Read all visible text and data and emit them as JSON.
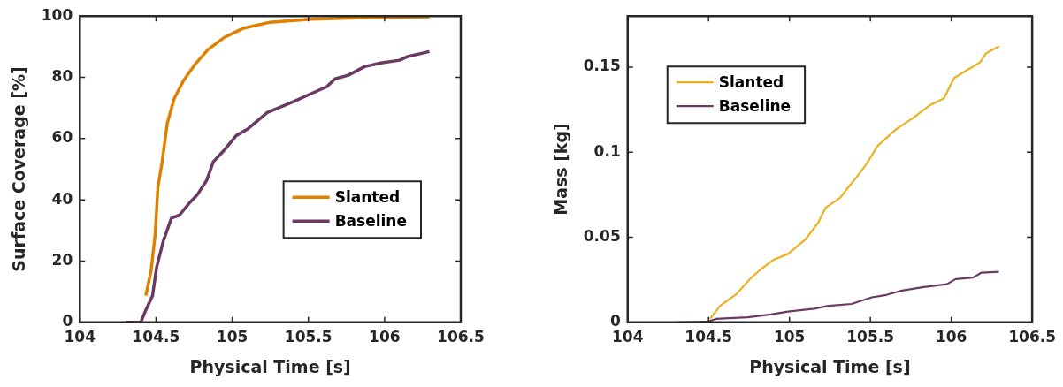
{
  "chart_data": [
    {
      "type": "line",
      "xlabel": "Physical Time [s]",
      "ylabel": "Surface Coverage [%]",
      "xlim": [
        104,
        106.5
      ],
      "xticks": [
        104,
        104.5,
        105,
        105.5,
        106,
        106.5
      ],
      "ylim": [
        0,
        100
      ],
      "yticks": [
        0,
        20,
        40,
        60,
        80,
        100
      ],
      "grid": false,
      "legend": "right",
      "marker": "none",
      "line_style": "solid",
      "series": [
        {
          "name": "Slanted",
          "color": "#e08000",
          "x": [
            104.433,
            104.468,
            104.495,
            104.512,
            104.539,
            104.574,
            104.619,
            104.681,
            104.752,
            104.84,
            104.947,
            105.071,
            105.248,
            105.514,
            105.869,
            106.294
          ],
          "values": [
            8.7,
            17,
            29,
            44,
            52,
            65,
            73,
            79,
            84,
            89,
            93,
            96,
            98,
            99,
            99.5,
            99.8
          ]
        },
        {
          "name": "Baseline",
          "color": "#6b3a64",
          "x": [
            104.3,
            104.4,
            104.433,
            104.477,
            104.504,
            104.548,
            104.601,
            104.654,
            104.716,
            104.77,
            104.832,
            104.876,
            104.947,
            105.027,
            105.106,
            105.23,
            105.408,
            105.514,
            105.62,
            105.674,
            105.762,
            105.869,
            105.975,
            106.099,
            106.152,
            106.294
          ],
          "values": [
            0,
            0,
            4,
            8.7,
            18,
            26.6,
            34,
            35,
            38.8,
            41.6,
            46.3,
            52.4,
            56.2,
            61,
            63.3,
            68.5,
            72.2,
            74.6,
            76.9,
            79.5,
            80.7,
            83.5,
            84.7,
            85.6,
            86.8,
            88.4
          ]
        }
      ]
    },
    {
      "type": "line",
      "xlabel": "Physical Time [s]",
      "ylabel": "Mass [kg]",
      "xlim": [
        104,
        106.5
      ],
      "xticks": [
        104,
        104.5,
        105,
        105.5,
        106,
        106.5
      ],
      "ylim": [
        0,
        0.18
      ],
      "yticks": [
        0,
        0.05,
        0.1,
        0.15
      ],
      "grid": false,
      "legend": "top left",
      "marker": "none",
      "line_style": "solid",
      "series": [
        {
          "name": "Slanted",
          "color": "#edb120",
          "x": [
            104.509,
            104.571,
            104.67,
            104.759,
            104.83,
            104.902,
            104.991,
            105.098,
            105.179,
            105.223,
            105.313,
            105.348,
            105.42,
            105.473,
            105.545,
            105.652,
            105.759,
            105.866,
            105.955,
            106.018,
            106.089,
            106.179,
            106.214,
            106.295
          ],
          "values": [
            0.002,
            0.0097,
            0.0164,
            0.0258,
            0.0317,
            0.0368,
            0.0402,
            0.0486,
            0.0588,
            0.0673,
            0.0732,
            0.0775,
            0.0859,
            0.0927,
            0.1037,
            0.113,
            0.1198,
            0.1275,
            0.1317,
            0.1436,
            0.1478,
            0.1529,
            0.158,
            0.1622
          ]
        },
        {
          "name": "Baseline",
          "color": "#6b3a64",
          "x": [
            104.304,
            104.491,
            104.545,
            104.741,
            104.884,
            104.991,
            105.152,
            105.241,
            105.384,
            105.509,
            105.598,
            105.688,
            105.83,
            105.973,
            106.027,
            106.134,
            106.188,
            106.295
          ],
          "values": [
            0,
            0.0003,
            0.002,
            0.0029,
            0.0046,
            0.0063,
            0.008,
            0.0097,
            0.0108,
            0.0147,
            0.0161,
            0.0185,
            0.0207,
            0.0224,
            0.0254,
            0.0263,
            0.0292,
            0.0297
          ]
        }
      ]
    }
  ]
}
